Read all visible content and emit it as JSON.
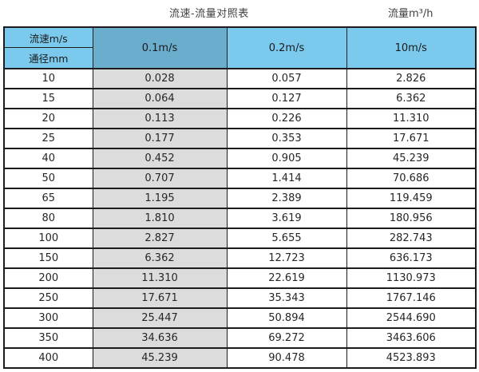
{
  "titles": {
    "main": "流速-流量对照表",
    "right": "流量m³/h"
  },
  "table": {
    "corner_top_label": "流速m/s",
    "corner_bottom_label": "通径mm"
  },
  "colors": {
    "header_blue": "#7bcaed",
    "header_selected_blue": "#6badcd",
    "shaded_column_gray": "#dcdcdc",
    "border": "#1c1c1c"
  },
  "chart_data": {
    "type": "table",
    "title": "流速-流量对照表",
    "unit_label": "流量m³/h",
    "col_header": "流速m/s",
    "row_header": "通径mm",
    "columns": [
      "0.1m/s",
      "0.2m/s",
      "10m/s"
    ],
    "highlighted_column_index": 0,
    "rows": [
      {
        "diameter_mm": "10",
        "values": [
          0.028,
          0.057,
          2.826
        ]
      },
      {
        "diameter_mm": "15",
        "values": [
          0.064,
          0.127,
          6.362
        ]
      },
      {
        "diameter_mm": "20",
        "values": [
          0.113,
          0.226,
          11.31
        ]
      },
      {
        "diameter_mm": "25",
        "values": [
          0.177,
          0.353,
          17.671
        ]
      },
      {
        "diameter_mm": "40",
        "values": [
          0.452,
          0.905,
          45.239
        ]
      },
      {
        "diameter_mm": "50",
        "values": [
          0.707,
          1.414,
          70.686
        ]
      },
      {
        "diameter_mm": "65",
        "values": [
          1.195,
          2.389,
          119.459
        ]
      },
      {
        "diameter_mm": "80",
        "values": [
          1.81,
          3.619,
          180.956
        ]
      },
      {
        "diameter_mm": "100",
        "values": [
          2.827,
          5.655,
          282.743
        ]
      },
      {
        "diameter_mm": "150",
        "values": [
          6.362,
          12.723,
          636.173
        ]
      },
      {
        "diameter_mm": "200",
        "values": [
          11.31,
          22.619,
          1130.973
        ]
      },
      {
        "diameter_mm": "250",
        "values": [
          17.671,
          35.343,
          1767.146
        ]
      },
      {
        "diameter_mm": "300",
        "values": [
          25.447,
          50.894,
          2544.69
        ]
      },
      {
        "diameter_mm": "350",
        "values": [
          34.636,
          69.272,
          3463.606
        ]
      },
      {
        "diameter_mm": "400",
        "values": [
          45.239,
          90.478,
          4523.893
        ]
      }
    ]
  }
}
